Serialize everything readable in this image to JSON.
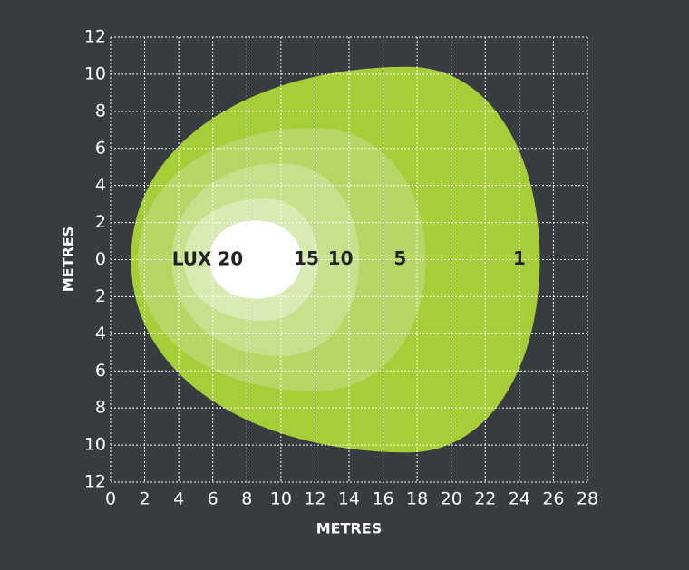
{
  "chart_data": {
    "type": "isolux",
    "x_label": "METRES",
    "y_label": "METRES",
    "unit_label": "LUX",
    "xlim": [
      0,
      28
    ],
    "xticks": [
      0,
      2,
      4,
      6,
      8,
      10,
      12,
      14,
      16,
      18,
      20,
      22,
      24,
      26,
      28
    ],
    "ylim": [
      -12,
      12
    ],
    "yticks": [
      {
        "value": 12,
        "label": "12"
      },
      {
        "value": 10,
        "label": "10"
      },
      {
        "value": 8,
        "label": "8"
      },
      {
        "value": 6,
        "label": "6"
      },
      {
        "value": 4,
        "label": "4"
      },
      {
        "value": 2,
        "label": "2"
      },
      {
        "value": 0,
        "label": "0"
      },
      {
        "value": -2,
        "label": "2"
      },
      {
        "value": -4,
        "label": "4"
      },
      {
        "value": -6,
        "label": "6"
      },
      {
        "value": -8,
        "label": "8"
      },
      {
        "value": -10,
        "label": "10"
      },
      {
        "value": -12,
        "label": "12"
      }
    ],
    "grid": true,
    "series": [
      {
        "name": "1",
        "color": "#a6ce39",
        "x_range": [
          1.2,
          25.2
        ],
        "y_max": 10.4,
        "x_peak": 17.5
      },
      {
        "name": "5",
        "color": "#b6d765",
        "x_range": [
          1.6,
          18.5
        ],
        "y_max": 7.1,
        "x_peak": 12
      },
      {
        "name": "10",
        "color": "#c6e08b",
        "x_range": [
          3.6,
          14.6
        ],
        "y_max": 5.2,
        "x_peak": 10
      },
      {
        "name": "15",
        "color": "#d9eab3",
        "x_range": [
          4.3,
          12.2
        ],
        "y_max": 3.3,
        "x_peak": 9
      },
      {
        "name": "20",
        "color": "#ffffff",
        "x_range": [
          5.8,
          11.2
        ],
        "y_max": 2.1,
        "x_peak": 8.5
      }
    ]
  }
}
